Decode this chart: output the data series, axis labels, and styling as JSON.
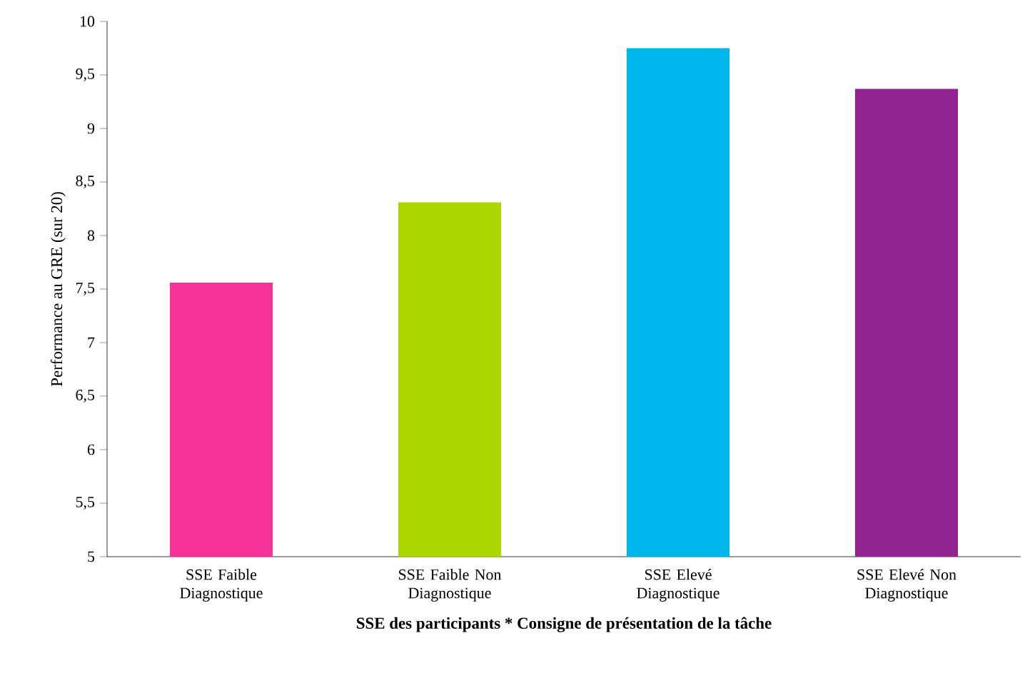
{
  "chart_data": {
    "type": "bar",
    "xlabel": "SSE des participants * Consigne de présentation de la tâche",
    "ylabel": "Performance au GRE (sur 20)",
    "categories": [
      "SSE Faible Diagnostique",
      "SSE Faible Non Diagnostique",
      "SSE Elevé Diagnostique",
      "SSE Elevé Non Diagnostique"
    ],
    "values": [
      7.56,
      8.31,
      9.75,
      9.37
    ],
    "colors": [
      "#f7339a",
      "#acd600",
      "#00b5ea",
      "#922491"
    ],
    "ylim": [
      5,
      10
    ],
    "yticks": [
      5,
      {
        "value": 5.5,
        "label": "5,5"
      },
      6,
      {
        "value": 6.5,
        "label": "6,5"
      },
      7,
      {
        "value": 7.5,
        "label": "7,5"
      },
      8,
      {
        "value": 8.5,
        "label": "8,5"
      },
      9,
      {
        "value": 9.5,
        "label": "9,5"
      },
      10
    ],
    "grid": false
  }
}
